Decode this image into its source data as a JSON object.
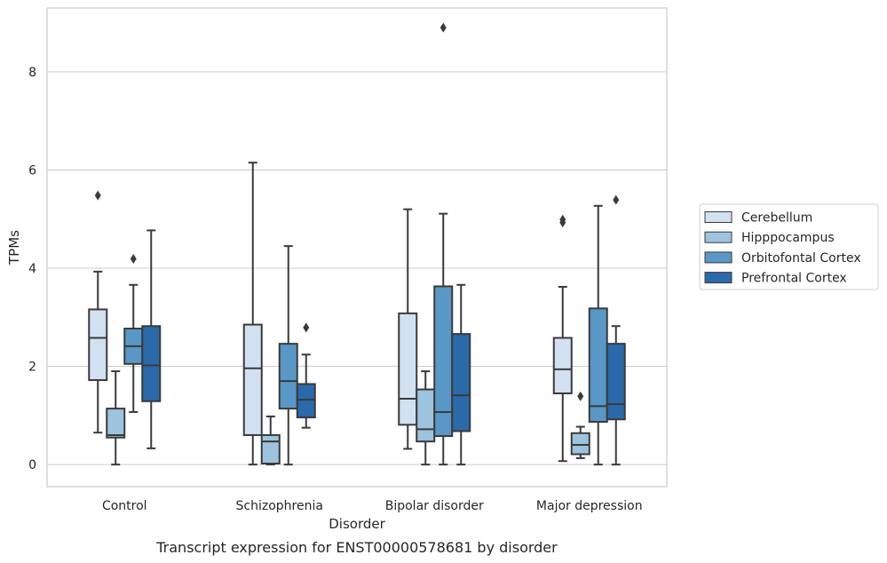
{
  "chart_data": {
    "type": "box",
    "xlabel": "Disorder",
    "ylabel": "TPMs",
    "caption": "Transcript expression for ENST00000578681 by disorder",
    "ylim": [
      -0.45,
      9.3
    ],
    "yticks": [
      "0",
      "2",
      "4",
      "6",
      "8"
    ],
    "grid": "horizontal",
    "legend_position": "right",
    "categories": [
      "Control",
      "Schizophrenia",
      "Bipolar disorder",
      "Major depression"
    ],
    "series": [
      {
        "name": "Cerebellum",
        "color": "#d2e1f1",
        "boxes": [
          {
            "whisker_low": 0.65,
            "q1": 1.72,
            "median": 2.58,
            "q3": 3.16,
            "whisker_high": 3.93,
            "outliers": [
              5.48
            ]
          },
          {
            "whisker_low": 0.0,
            "q1": 0.6,
            "median": 1.96,
            "q3": 2.85,
            "whisker_high": 6.15,
            "outliers": []
          },
          {
            "whisker_low": 0.32,
            "q1": 0.81,
            "median": 1.34,
            "q3": 3.08,
            "whisker_high": 5.2,
            "outliers": []
          },
          {
            "whisker_low": 0.07,
            "q1": 1.45,
            "median": 1.94,
            "q3": 2.58,
            "whisker_high": 3.62,
            "outliers": [
              4.93,
              4.99
            ]
          }
        ]
      },
      {
        "name": "Hipppocampus",
        "color": "#9dc4de",
        "boxes": [
          {
            "whisker_low": 0.0,
            "q1": 0.55,
            "median": 0.6,
            "q3": 1.14,
            "whisker_high": 1.9,
            "outliers": []
          },
          {
            "whisker_low": 0.0,
            "q1": 0.02,
            "median": 0.47,
            "q3": 0.6,
            "whisker_high": 0.98,
            "outliers": []
          },
          {
            "whisker_low": 0.0,
            "q1": 0.47,
            "median": 0.72,
            "q3": 1.53,
            "whisker_high": 1.9,
            "outliers": []
          },
          {
            "whisker_low": 0.13,
            "q1": 0.21,
            "median": 0.4,
            "q3": 0.64,
            "whisker_high": 0.77,
            "outliers": [
              1.39
            ]
          }
        ]
      },
      {
        "name": "Orbitofontal Cortex",
        "color": "#5998c6",
        "boxes": [
          {
            "whisker_low": 1.07,
            "q1": 2.05,
            "median": 2.41,
            "q3": 2.77,
            "whisker_high": 3.66,
            "outliers": [
              4.19
            ]
          },
          {
            "whisker_low": 0.0,
            "q1": 1.14,
            "median": 1.7,
            "q3": 2.46,
            "whisker_high": 4.45,
            "outliers": []
          },
          {
            "whisker_low": 0.0,
            "q1": 0.58,
            "median": 1.07,
            "q3": 3.63,
            "whisker_high": 5.11,
            "outliers": [
              8.9
            ]
          },
          {
            "whisker_low": 0.0,
            "q1": 0.87,
            "median": 1.19,
            "q3": 3.18,
            "whisker_high": 5.27,
            "outliers": []
          }
        ]
      },
      {
        "name": "Prefrontal Cortex",
        "color": "#2a6aaa",
        "boxes": [
          {
            "whisker_low": 0.33,
            "q1": 1.29,
            "median": 2.02,
            "q3": 2.82,
            "whisker_high": 4.77,
            "outliers": []
          },
          {
            "whisker_low": 0.75,
            "q1": 0.96,
            "median": 1.32,
            "q3": 1.64,
            "whisker_high": 2.24,
            "outliers": [
              2.79
            ]
          },
          {
            "whisker_low": 0.0,
            "q1": 0.68,
            "median": 1.41,
            "q3": 2.66,
            "whisker_high": 3.66,
            "outliers": []
          },
          {
            "whisker_low": 0.0,
            "q1": 0.92,
            "median": 1.23,
            "q3": 2.46,
            "whisker_high": 2.82,
            "outliers": [
              5.39
            ]
          }
        ]
      }
    ]
  }
}
